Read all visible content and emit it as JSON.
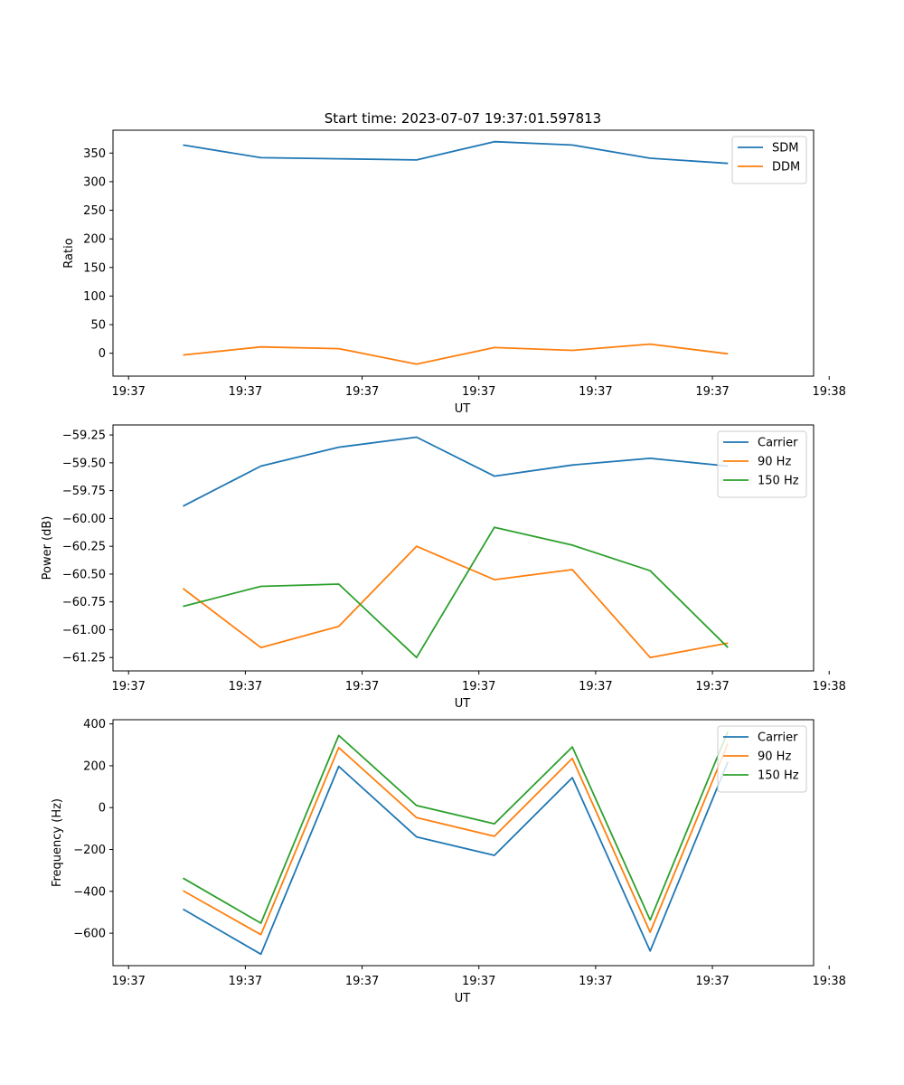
{
  "figure_title": "Start time: 2023-07-07 19:37:01.597813",
  "chart_data": [
    {
      "type": "line",
      "xlabel": "UT",
      "ylabel": "Ratio",
      "xlim": [
        0,
        9
      ],
      "ylim": [
        -40,
        390
      ],
      "x_ticks": [
        0.2,
        1.7,
        3.2,
        4.7,
        6.2,
        7.7,
        9.2
      ],
      "x_tick_labels": [
        "19:37",
        "19:37",
        "19:37",
        "19:37",
        "19:37",
        "19:37",
        "19:38"
      ],
      "y_ticks": [
        0,
        50,
        100,
        150,
        200,
        250,
        300,
        350
      ],
      "y_tick_labels": [
        "0",
        "50",
        "100",
        "150",
        "200",
        "250",
        "300",
        "350"
      ],
      "legend_position": "top-right",
      "x": [
        0.9,
        1.9,
        2.9,
        3.9,
        4.9,
        5.9,
        6.9,
        7.9
      ],
      "series": [
        {
          "name": "SDM",
          "color": "#1f77b4",
          "values": [
            364,
            342,
            340,
            338,
            370,
            364,
            341,
            332
          ]
        },
        {
          "name": "DDM",
          "color": "#ff7f0e",
          "values": [
            -3,
            11,
            8,
            -19,
            10,
            5,
            16,
            -1
          ]
        }
      ]
    },
    {
      "type": "line",
      "xlabel": "UT",
      "ylabel": "Power (dB)",
      "xlim": [
        0,
        9
      ],
      "ylim": [
        -61.37,
        -59.16
      ],
      "x_ticks": [
        0.2,
        1.7,
        3.2,
        4.7,
        6.2,
        7.7,
        9.2
      ],
      "x_tick_labels": [
        "19:37",
        "19:37",
        "19:37",
        "19:37",
        "19:37",
        "19:37",
        "19:38"
      ],
      "y_ticks": [
        -61.25,
        -61.0,
        -60.75,
        -60.5,
        -60.25,
        -60.0,
        -59.75,
        -59.5,
        -59.25
      ],
      "y_tick_labels": [
        "−61.25",
        "−61.00",
        "−60.75",
        "−60.50",
        "−60.25",
        "−60.00",
        "−59.75",
        "−59.50",
        "−59.25"
      ],
      "legend_position": "top-right",
      "x": [
        0.9,
        1.9,
        2.9,
        3.9,
        4.9,
        5.9,
        6.9,
        7.9
      ],
      "series": [
        {
          "name": "Carrier",
          "color": "#1f77b4",
          "values": [
            -59.89,
            -59.53,
            -59.36,
            -59.27,
            -59.62,
            -59.52,
            -59.46,
            -59.53
          ]
        },
        {
          "name": "90 Hz",
          "color": "#ff7f0e",
          "values": [
            -60.63,
            -61.16,
            -60.97,
            -60.25,
            -60.55,
            -60.46,
            -61.25,
            -61.12
          ]
        },
        {
          "name": "150 Hz",
          "color": "#2ca02c",
          "values": [
            -60.79,
            -60.61,
            -60.59,
            -61.25,
            -60.08,
            -60.24,
            -60.47,
            -61.16
          ]
        }
      ]
    },
    {
      "type": "line",
      "xlabel": "UT",
      "ylabel": "Frequency (Hz)",
      "xlim": [
        0,
        9
      ],
      "ylim": [
        -755,
        420
      ],
      "x_ticks": [
        0.2,
        1.7,
        3.2,
        4.7,
        6.2,
        7.7,
        9.2
      ],
      "x_tick_labels": [
        "19:37",
        "19:37",
        "19:37",
        "19:37",
        "19:37",
        "19:37",
        "19:38"
      ],
      "y_ticks": [
        -600,
        -400,
        -200,
        0,
        200,
        400
      ],
      "y_tick_labels": [
        "−600",
        "−400",
        "−200",
        "0",
        "200",
        "400"
      ],
      "legend_position": "top-right",
      "x": [
        0.9,
        1.9,
        2.9,
        3.9,
        4.9,
        5.9,
        6.9,
        7.9
      ],
      "series": [
        {
          "name": "Carrier",
          "color": "#1f77b4",
          "values": [
            -485,
            -700,
            197,
            -140,
            -228,
            143,
            -685,
            220
          ]
        },
        {
          "name": "90 Hz",
          "color": "#ff7f0e",
          "values": [
            -397,
            -607,
            287,
            -48,
            -137,
            235,
            -595,
            307
          ]
        },
        {
          "name": "150 Hz",
          "color": "#2ca02c",
          "values": [
            -337,
            -552,
            345,
            10,
            -77,
            290,
            -537,
            365
          ]
        }
      ]
    }
  ]
}
